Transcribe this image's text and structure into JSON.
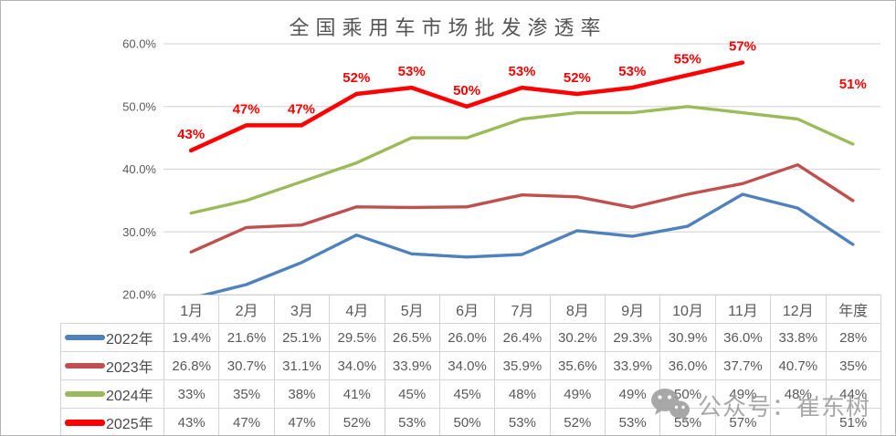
{
  "title": "全国乘用车市场批发渗透率",
  "watermark": {
    "label": "公众号：崔东树",
    "icon": "wechat-icon"
  },
  "chart_data": {
    "type": "line",
    "title": "全国乘用车市场批发渗透率",
    "categories": [
      "1月",
      "2月",
      "3月",
      "4月",
      "5月",
      "6月",
      "7月",
      "8月",
      "9月",
      "10月",
      "11月",
      "12月",
      "年度"
    ],
    "y_ticks": [
      {
        "value": 60,
        "label": "60.0%"
      },
      {
        "value": 50,
        "label": "50.0%"
      },
      {
        "value": 40,
        "label": "40.0%"
      },
      {
        "value": 30,
        "label": "30.0%"
      },
      {
        "value": 20,
        "label": "20.0%"
      }
    ],
    "ylim": [
      20,
      60
    ],
    "grid": true,
    "legend_position": "table-left",
    "series": [
      {
        "name": "2022年",
        "color": "#4F81BD",
        "values": [
          19.4,
          21.6,
          25.1,
          29.5,
          26.5,
          26.0,
          26.4,
          30.2,
          29.3,
          30.9,
          36.0,
          33.8,
          28
        ]
      },
      {
        "name": "2023年",
        "color": "#C0504D",
        "values": [
          26.8,
          30.7,
          31.1,
          34.0,
          33.9,
          34.0,
          35.9,
          35.6,
          33.9,
          36.0,
          37.7,
          40.7,
          35
        ]
      },
      {
        "name": "2024年",
        "color": "#9BBB59",
        "values": [
          33,
          35,
          38,
          41,
          45,
          45,
          48,
          49,
          49,
          50,
          49,
          48,
          44
        ]
      },
      {
        "name": "2025年",
        "color": "#FF0000",
        "values": [
          43,
          47,
          47,
          52,
          53,
          50,
          53,
          52,
          53,
          55,
          57,
          null,
          51
        ],
        "data_labels": [
          "43%",
          "47%",
          "47%",
          "52%",
          "53%",
          "50%",
          "53%",
          "52%",
          "53%",
          "55%",
          "57%",
          null,
          "51%"
        ]
      }
    ]
  },
  "table": {
    "header": [
      "1月",
      "2月",
      "3月",
      "4月",
      "5月",
      "6月",
      "7月",
      "8月",
      "9月",
      "10月",
      "11月",
      "12月",
      "年度"
    ],
    "rows": [
      {
        "label": "2022年",
        "color": "#4F81BD",
        "cells": [
          "19.4%",
          "21.6%",
          "25.1%",
          "29.5%",
          "26.5%",
          "26.0%",
          "26.4%",
          "30.2%",
          "29.3%",
          "30.9%",
          "36.0%",
          "33.8%",
          "28%"
        ]
      },
      {
        "label": "2023年",
        "color": "#C0504D",
        "cells": [
          "26.8%",
          "30.7%",
          "31.1%",
          "34.0%",
          "33.9%",
          "34.0%",
          "35.9%",
          "35.6%",
          "33.9%",
          "36.0%",
          "37.7%",
          "40.7%",
          "35%"
        ]
      },
      {
        "label": "2024年",
        "color": "#9BBB59",
        "cells": [
          "33%",
          "35%",
          "38%",
          "41%",
          "45%",
          "45%",
          "48%",
          "49%",
          "49%",
          "50%",
          "49%",
          "48%",
          "44%"
        ]
      },
      {
        "label": "2025年",
        "color": "#FF0000",
        "cells": [
          "43%",
          "47%",
          "47%",
          "52%",
          "53%",
          "50%",
          "53%",
          "52%",
          "53%",
          "55%",
          "57%",
          "",
          "51%"
        ]
      }
    ]
  }
}
